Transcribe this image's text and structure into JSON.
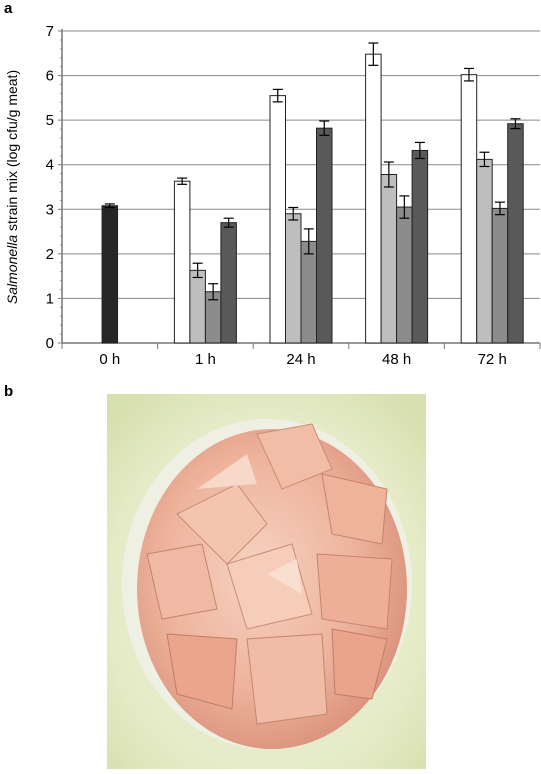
{
  "panels": {
    "a_label": "a",
    "b_label": "b"
  },
  "chart_data": {
    "type": "bar",
    "title": "",
    "xlabel": "",
    "ylabel_italic": "Salmonella",
    "ylabel_rest": " strain mix (log cfu/g meat)",
    "ylim": [
      0,
      7
    ],
    "yticks": [
      0,
      1,
      2,
      3,
      4,
      5,
      6,
      7
    ],
    "grid": true,
    "legend": "none",
    "categories": [
      "0 h",
      "1 h",
      "24 h",
      "48 h",
      "72 h"
    ],
    "groups": [
      {
        "category": "0 h",
        "bars": [
          {
            "value": 3.08,
            "err": 0.04,
            "color": "#262626"
          }
        ]
      },
      {
        "category": "1 h",
        "bars": [
          {
            "value": 3.63,
            "err": 0.07,
            "color": "#ffffff"
          },
          {
            "value": 1.63,
            "err": 0.16,
            "color": "#bebebe"
          },
          {
            "value": 1.15,
            "err": 0.18,
            "color": "#8c8c8c"
          },
          {
            "value": 2.7,
            "err": 0.1,
            "color": "#595959"
          }
        ]
      },
      {
        "category": "24 h",
        "bars": [
          {
            "value": 5.55,
            "err": 0.14,
            "color": "#ffffff"
          },
          {
            "value": 2.9,
            "err": 0.14,
            "color": "#bebebe"
          },
          {
            "value": 2.28,
            "err": 0.28,
            "color": "#8c8c8c"
          },
          {
            "value": 4.82,
            "err": 0.16,
            "color": "#595959"
          }
        ]
      },
      {
        "category": "48 h",
        "bars": [
          {
            "value": 6.48,
            "err": 0.25,
            "color": "#ffffff"
          },
          {
            "value": 3.78,
            "err": 0.28,
            "color": "#bebebe"
          },
          {
            "value": 3.05,
            "err": 0.25,
            "color": "#8c8c8c"
          },
          {
            "value": 4.32,
            "err": 0.18,
            "color": "#595959"
          }
        ]
      },
      {
        "category": "72 h",
        "bars": [
          {
            "value": 6.02,
            "err": 0.14,
            "color": "#ffffff"
          },
          {
            "value": 4.12,
            "err": 0.16,
            "color": "#bebebe"
          },
          {
            "value": 3.02,
            "err": 0.14,
            "color": "#8c8c8c"
          },
          {
            "value": 4.92,
            "err": 0.11,
            "color": "#595959"
          }
        ]
      }
    ]
  },
  "photo": {
    "description_icon": "raw-chicken-pieces-photo",
    "background": "#e8edd0",
    "meat_color": "#f0b6a0"
  }
}
